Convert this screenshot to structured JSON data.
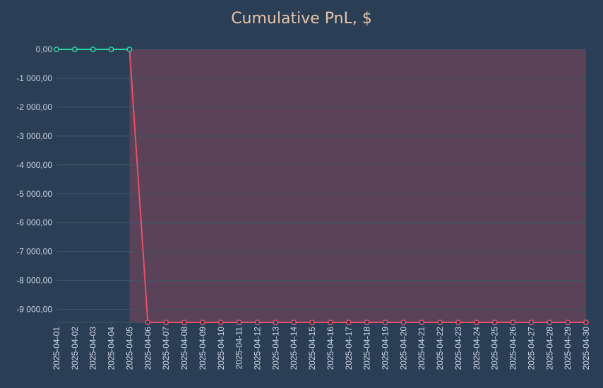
{
  "chart_data": {
    "type": "line",
    "title": "Cumulative PnL, $",
    "x": [
      "2025-04-01",
      "2025-04-02",
      "2025-04-03",
      "2025-04-04",
      "2025-04-05",
      "2025-04-06",
      "2025-04-07",
      "2025-04-08",
      "2025-04-09",
      "2025-04-10",
      "2025-04-11",
      "2025-04-12",
      "2025-04-13",
      "2025-04-14",
      "2025-04-15",
      "2025-04-16",
      "2025-04-17",
      "2025-04-18",
      "2025-04-19",
      "2025-04-20",
      "2025-04-21",
      "2025-04-22",
      "2025-04-23",
      "2025-04-24",
      "2025-04-25",
      "2025-04-26",
      "2025-04-27",
      "2025-04-28",
      "2025-04-29",
      "2025-04-30"
    ],
    "series": [
      {
        "values": [
          0,
          0,
          0,
          0,
          0,
          -9450,
          -9450,
          -9450,
          -9450,
          -9450,
          -9450,
          -9450,
          -9450,
          -9450,
          -9450,
          -9450,
          -9450,
          -9450,
          -9450,
          -9450,
          -9450,
          -9450,
          -9450,
          -9450,
          -9450,
          -9450,
          -9450,
          -9450,
          -9450,
          -9450
        ]
      }
    ],
    "y_ticks": [
      0,
      -1000,
      -2000,
      -3000,
      -4000,
      -5000,
      -6000,
      -7000,
      -8000,
      -9000
    ],
    "y_tick_labels": [
      "0,00",
      "-1 000,00",
      "-2 000,00",
      "-3 000,00",
      "-4 000,00",
      "-5 000,00",
      "-6 000,00",
      "-7 000,00",
      "-8 000,00",
      "-9 000,00"
    ],
    "ylim": [
      -9450,
      0
    ],
    "xlabel": "",
    "ylabel": "",
    "grid": true,
    "colors": {
      "positive": "#2ed8a3",
      "negative": "#e8506a",
      "negative_fill": "#5a4258",
      "background": "#2a3e55",
      "grid": "#41556b",
      "title": "#e8c4a8"
    }
  }
}
